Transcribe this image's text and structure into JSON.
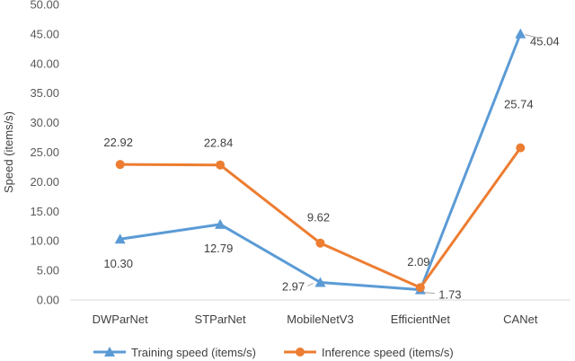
{
  "chart_data": {
    "type": "line",
    "title": "",
    "xlabel": "",
    "ylabel": "Speed (items/s)",
    "ylim": [
      0,
      50
    ],
    "ytick_step": 5,
    "ytick_labels": [
      "0.00",
      "5.00",
      "10.00",
      "15.00",
      "20.00",
      "25.00",
      "30.00",
      "35.00",
      "40.00",
      "45.00",
      "50.00"
    ],
    "grid": false,
    "legend_position": "bottom",
    "categories": [
      "DWParNet",
      "STParNet",
      "MobileNetV3",
      "EfficientNet",
      "CANet"
    ],
    "series": [
      {
        "name": "Training speed (items/s)",
        "color": "#5B9BD5",
        "marker": "triangle",
        "values": [
          10.3,
          12.79,
          2.97,
          1.73,
          45.04
        ],
        "labels": [
          "10.30",
          "12.79",
          "2.97",
          "1.73",
          "45.04"
        ]
      },
      {
        "name": "Inference speed (items/s)",
        "color": "#ED7D31",
        "marker": "circle",
        "values": [
          22.92,
          22.84,
          9.62,
          2.09,
          25.74
        ],
        "labels": [
          "22.92",
          "22.84",
          "9.62",
          "2.09",
          "25.74"
        ]
      }
    ]
  }
}
